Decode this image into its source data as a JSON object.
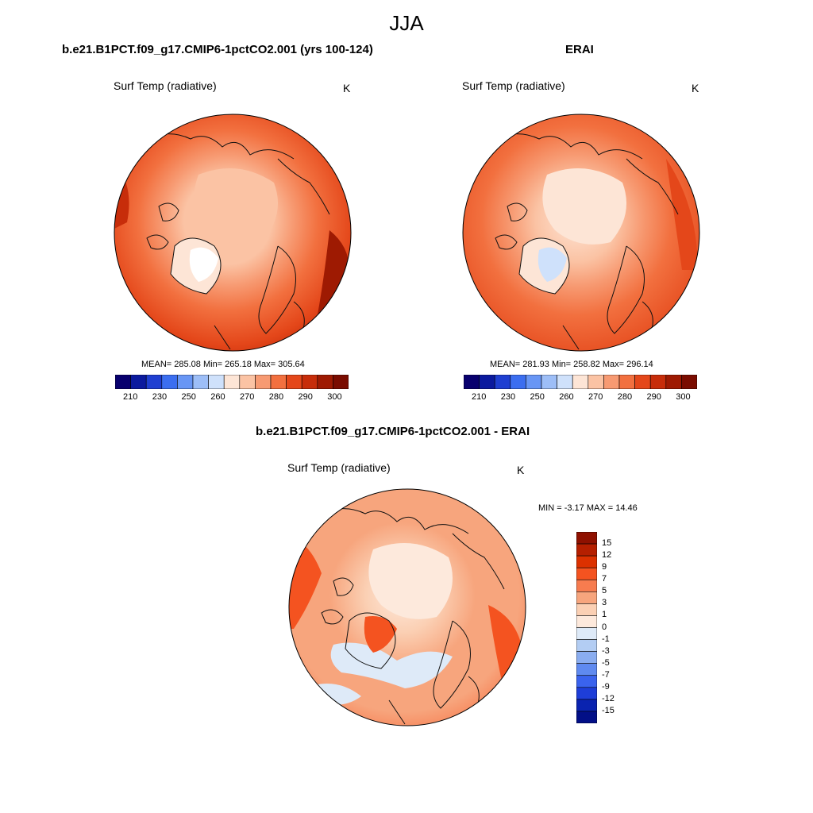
{
  "title": "JJA",
  "palettes": {
    "absolute": [
      "#08006e",
      "#0b1a9e",
      "#1f3fd1",
      "#3b6ef0",
      "#6896f5",
      "#9dbef7",
      "#cfe1fb",
      "#fde5d6",
      "#fbc3a4",
      "#f79a72",
      "#f2703f",
      "#e4471a",
      "#c72d0a",
      "#9e1a02",
      "#7a0c00"
    ],
    "difference": [
      "#8f1100",
      "#b51f00",
      "#dc3100",
      "#f45320",
      "#f77c4f",
      "#f7a57d",
      "#fbd0b4",
      "#fde9dc",
      "#deeaf8",
      "#b3cdf3",
      "#8aadf0",
      "#5f8af0",
      "#3a63ee",
      "#1e3ed8",
      "#0a23b0",
      "#020f87"
    ]
  },
  "panels": {
    "model": {
      "heading": "b.e21.B1PCT.f09_g17.CMIP6-1pctCO2.001 (yrs 100-124)",
      "variable": "Surf Temp (radiative)",
      "units": "K",
      "stats": "MEAN= 285.08  Min= 265.18  Max= 305.64",
      "mean": 285.08,
      "min": 265.18,
      "max": 305.64,
      "colorbar_ticks": [
        "210",
        "230",
        "250",
        "260",
        "270",
        "280",
        "290",
        "300"
      ]
    },
    "erai": {
      "heading": "ERAI",
      "variable": "Surf Temp (radiative)",
      "units": "K",
      "stats": "MEAN= 281.93  Min= 258.82  Max= 296.14",
      "mean": 281.93,
      "min": 258.82,
      "max": 296.14,
      "colorbar_ticks": [
        "210",
        "230",
        "250",
        "260",
        "270",
        "280",
        "290",
        "300"
      ]
    },
    "diff": {
      "heading": "b.e21.B1PCT.f09_g17.CMIP6-1pctCO2.001 - ERAI",
      "variable": "Surf Temp (radiative)",
      "units": "K",
      "stats": "MIN =  -3.17 MAX =  14.46",
      "min": -3.17,
      "max": 14.46,
      "colorbar_ticks": [
        "15",
        "12",
        "9",
        "7",
        "5",
        "3",
        "1",
        "0",
        "-1",
        "-3",
        "-5",
        "-7",
        "-9",
        "-12",
        "-15"
      ]
    }
  }
}
